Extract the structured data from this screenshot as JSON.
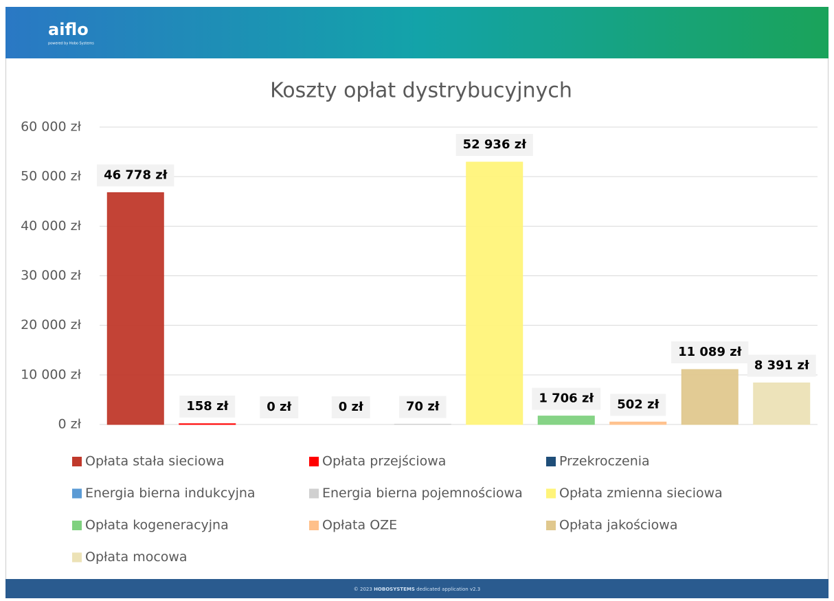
{
  "header": {
    "logo": "aiflo",
    "tagline": "powered by Hobo Systems"
  },
  "footer": {
    "prefix": "© 2023",
    "brand": "HOBOSYSTEMS",
    "suffix": "dedicated application v2.3"
  },
  "chart_data": {
    "type": "bar",
    "title": "Koszty opłat dystrybucyjnych",
    "categories": [
      "Opłata stała sieciowa",
      "Opłata przejściowa",
      "Przekroczenia",
      "Energia bierna indukcyjna",
      "Energia bierna pojemnościowa",
      "Opłata zmienna sieciowa",
      "Opłata kogeneracyjna",
      "Opłata OZE",
      "Opłata jakościowa",
      "Opłata mocowa"
    ],
    "values": [
      46778,
      158,
      0,
      0,
      70,
      52936,
      1706,
      502,
      11089,
      8391
    ],
    "value_labels": [
      "46 778 zł",
      "158 zł",
      "0 zł",
      "0 zł",
      "70 zł",
      "52 936 zł",
      "1 706 zł",
      "502 zł",
      "11 089 zł",
      "8 391 zł"
    ],
    "colors": [
      "#c0392b",
      "#ff0000",
      "#1f4e79",
      "#5b9bd5",
      "#d0d0d0",
      "#fff47a",
      "#7fd17f",
      "#ffc08a",
      "#e0c88e",
      "#ece2b6"
    ],
    "ylim": [
      0,
      60000
    ],
    "yticks": [
      {
        "value": 0,
        "label": "0 zł"
      },
      {
        "value": 10000,
        "label": "10 000 zł"
      },
      {
        "value": 20000,
        "label": "20 000 zł"
      },
      {
        "value": 30000,
        "label": "30 000 zł"
      },
      {
        "value": 40000,
        "label": "40 000 zł"
      },
      {
        "value": 50000,
        "label": "50 000 zł"
      },
      {
        "value": 60000,
        "label": "60 000 zł"
      }
    ],
    "grid": true,
    "legend": "bottom"
  }
}
